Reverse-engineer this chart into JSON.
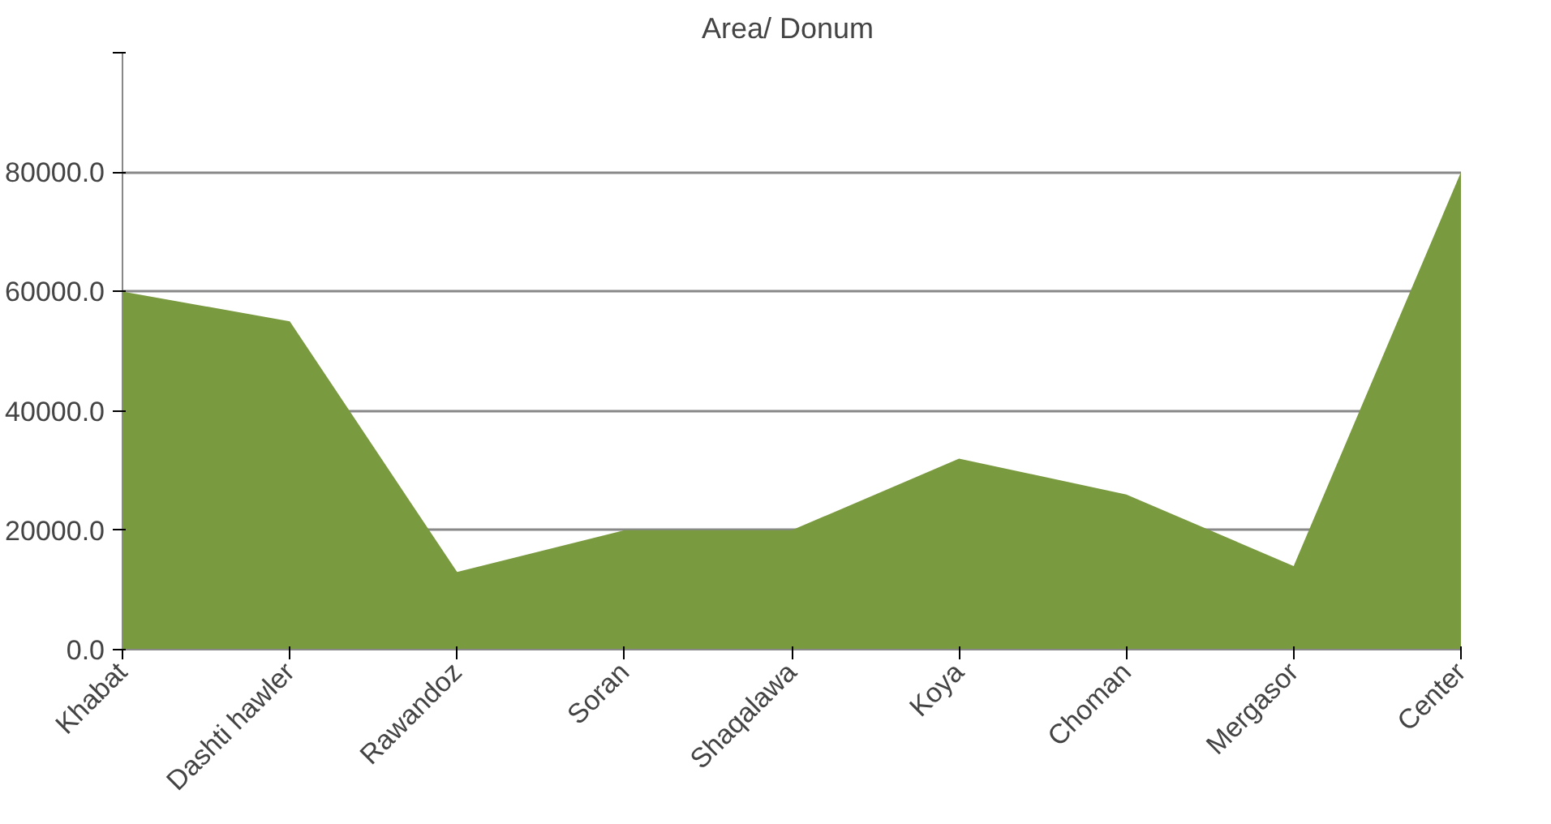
{
  "chart_data": {
    "type": "area",
    "title": "Area/  Donum",
    "categories": [
      "Khabat",
      "Dashti hawler",
      "Rawandoz",
      "Soran",
      "Shaqalawa",
      "Koya",
      "Choman",
      "Mergasor",
      "Center"
    ],
    "series": [
      {
        "color": "#7a9a3f",
        "values": [
          60000,
          55000,
          13000,
          20000,
          20000,
          32000,
          26000,
          14000,
          80000
        ]
      }
    ],
    "ylim": [
      0,
      100000
    ],
    "yticks": [
      {
        "value": 0,
        "label": "0.0"
      },
      {
        "value": 20000,
        "label": "20000.0"
      },
      {
        "value": 40000,
        "label": "40000.0"
      },
      {
        "value": 60000,
        "label": "60000.0"
      },
      {
        "value": 80000,
        "label": "80000.0"
      },
      {
        "value": 100000,
        "label": null
      }
    ],
    "grid": "y"
  }
}
